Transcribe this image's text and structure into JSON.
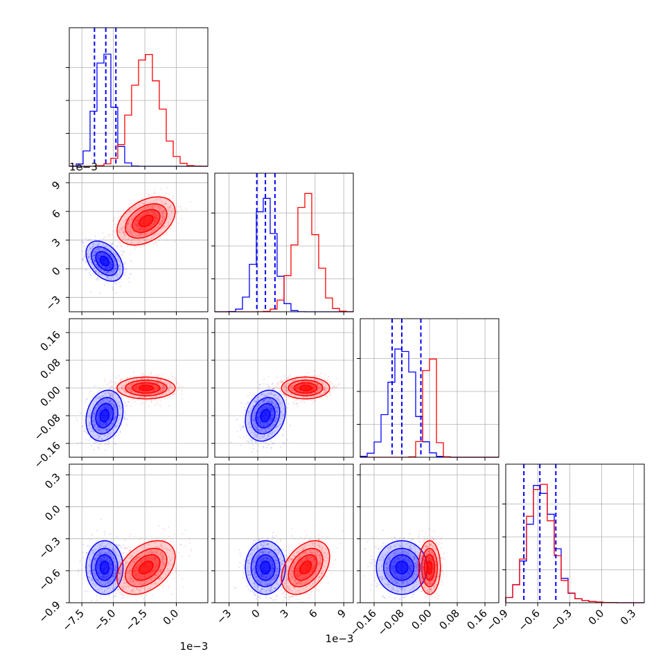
{
  "colors": {
    "series_a": "#0000ff",
    "series_b": "#ff0000",
    "grid": "#b0b0b0",
    "frame": "#000000"
  },
  "chart_data": {
    "type": "corner",
    "description": "Corner plot of 4 parameters comparing two posterior sample sets (blue and red)",
    "parameters": [
      {
        "ticks": [
          -7.5,
          -5.0,
          -2.5,
          0.0
        ],
        "tick_labels": [
          "−7.5",
          "−5.0",
          "−2.5",
          "0.0"
        ],
        "range": [
          -8.5,
          2.5
        ],
        "offset": "1e−3"
      },
      {
        "ticks": [
          -3,
          0,
          3,
          6,
          9
        ],
        "tick_labels": [
          "−3",
          "0",
          "3",
          "6",
          "9"
        ],
        "range": [
          -4.5,
          10
        ],
        "offset": "1e−3"
      },
      {
        "ticks": [
          -0.16,
          -0.08,
          0.0,
          0.08,
          0.16
        ],
        "tick_labels": [
          "−0.16",
          "−0.08",
          "0.00",
          "0.08",
          "0.16"
        ],
        "range": [
          -0.2,
          0.2
        ],
        "offset": ""
      },
      {
        "ticks": [
          -0.9,
          -0.6,
          -0.3,
          0.0,
          0.3
        ],
        "tick_labels": [
          "−0.9",
          "−0.6",
          "−0.3",
          "0.0",
          "0.3"
        ],
        "range": [
          -0.9,
          0.4
        ],
        "offset": ""
      }
    ],
    "series": [
      {
        "color": "#0000ff",
        "means": [
          -5.7,
          0.8,
          -0.08,
          -0.57
        ],
        "stds": [
          0.7,
          1.0,
          0.035,
          0.12
        ],
        "correlations": {
          "0-1": -0.4,
          "0-2": 0.2,
          "0-3": 0.0,
          "1-2": 0.2,
          "1-3": 0.0,
          "2-3": 0.0
        },
        "quantiles_1d": [
          [
            -6.5,
            -5.6,
            -4.8
          ],
          [
            -0.1,
            0.8,
            1.8
          ],
          [
            -0.108,
            -0.08,
            -0.025
          ],
          [
            -0.73,
            -0.58,
            -0.43
          ]
        ]
      },
      {
        "color": "#ff0000",
        "means": [
          -2.4,
          5.0,
          0.0,
          -0.57
        ],
        "stds": [
          1.1,
          1.2,
          0.015,
          0.12
        ],
        "correlations": {
          "0-1": 0.4,
          "0-2": 0.0,
          "0-3": 0.4,
          "1-2": 0.0,
          "1-3": 0.4,
          "2-3": 0.0
        }
      }
    ],
    "grid": true
  }
}
